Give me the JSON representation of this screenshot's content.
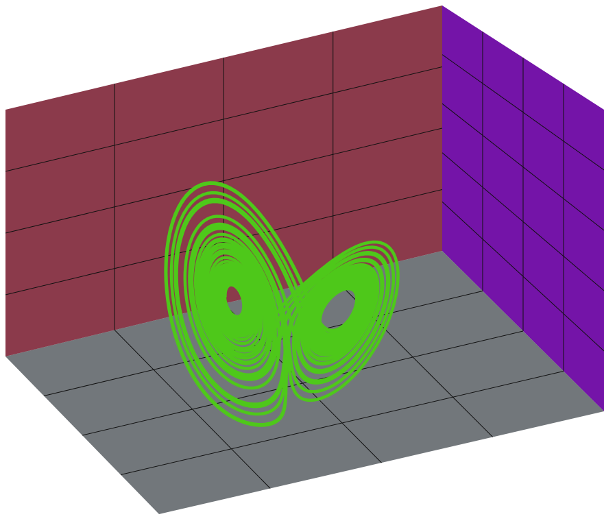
{
  "scene": {
    "colors": {
      "background": "#ffffff",
      "back_wall": "#8b3a4b",
      "side_wall": "#7414a8",
      "floor": "#72777b",
      "grid_line": "#111111",
      "curve": "#4ec81a"
    },
    "grid": {
      "back_wall_columns": 4,
      "back_wall_rows": 4,
      "side_wall_columns": 4,
      "side_wall_rows": 5,
      "floor_columns": 4,
      "floor_rows": 4
    },
    "attractor": {
      "name": "lorenz-attractor",
      "sigma": 10,
      "rho": 28,
      "beta": 2.6667
    }
  }
}
